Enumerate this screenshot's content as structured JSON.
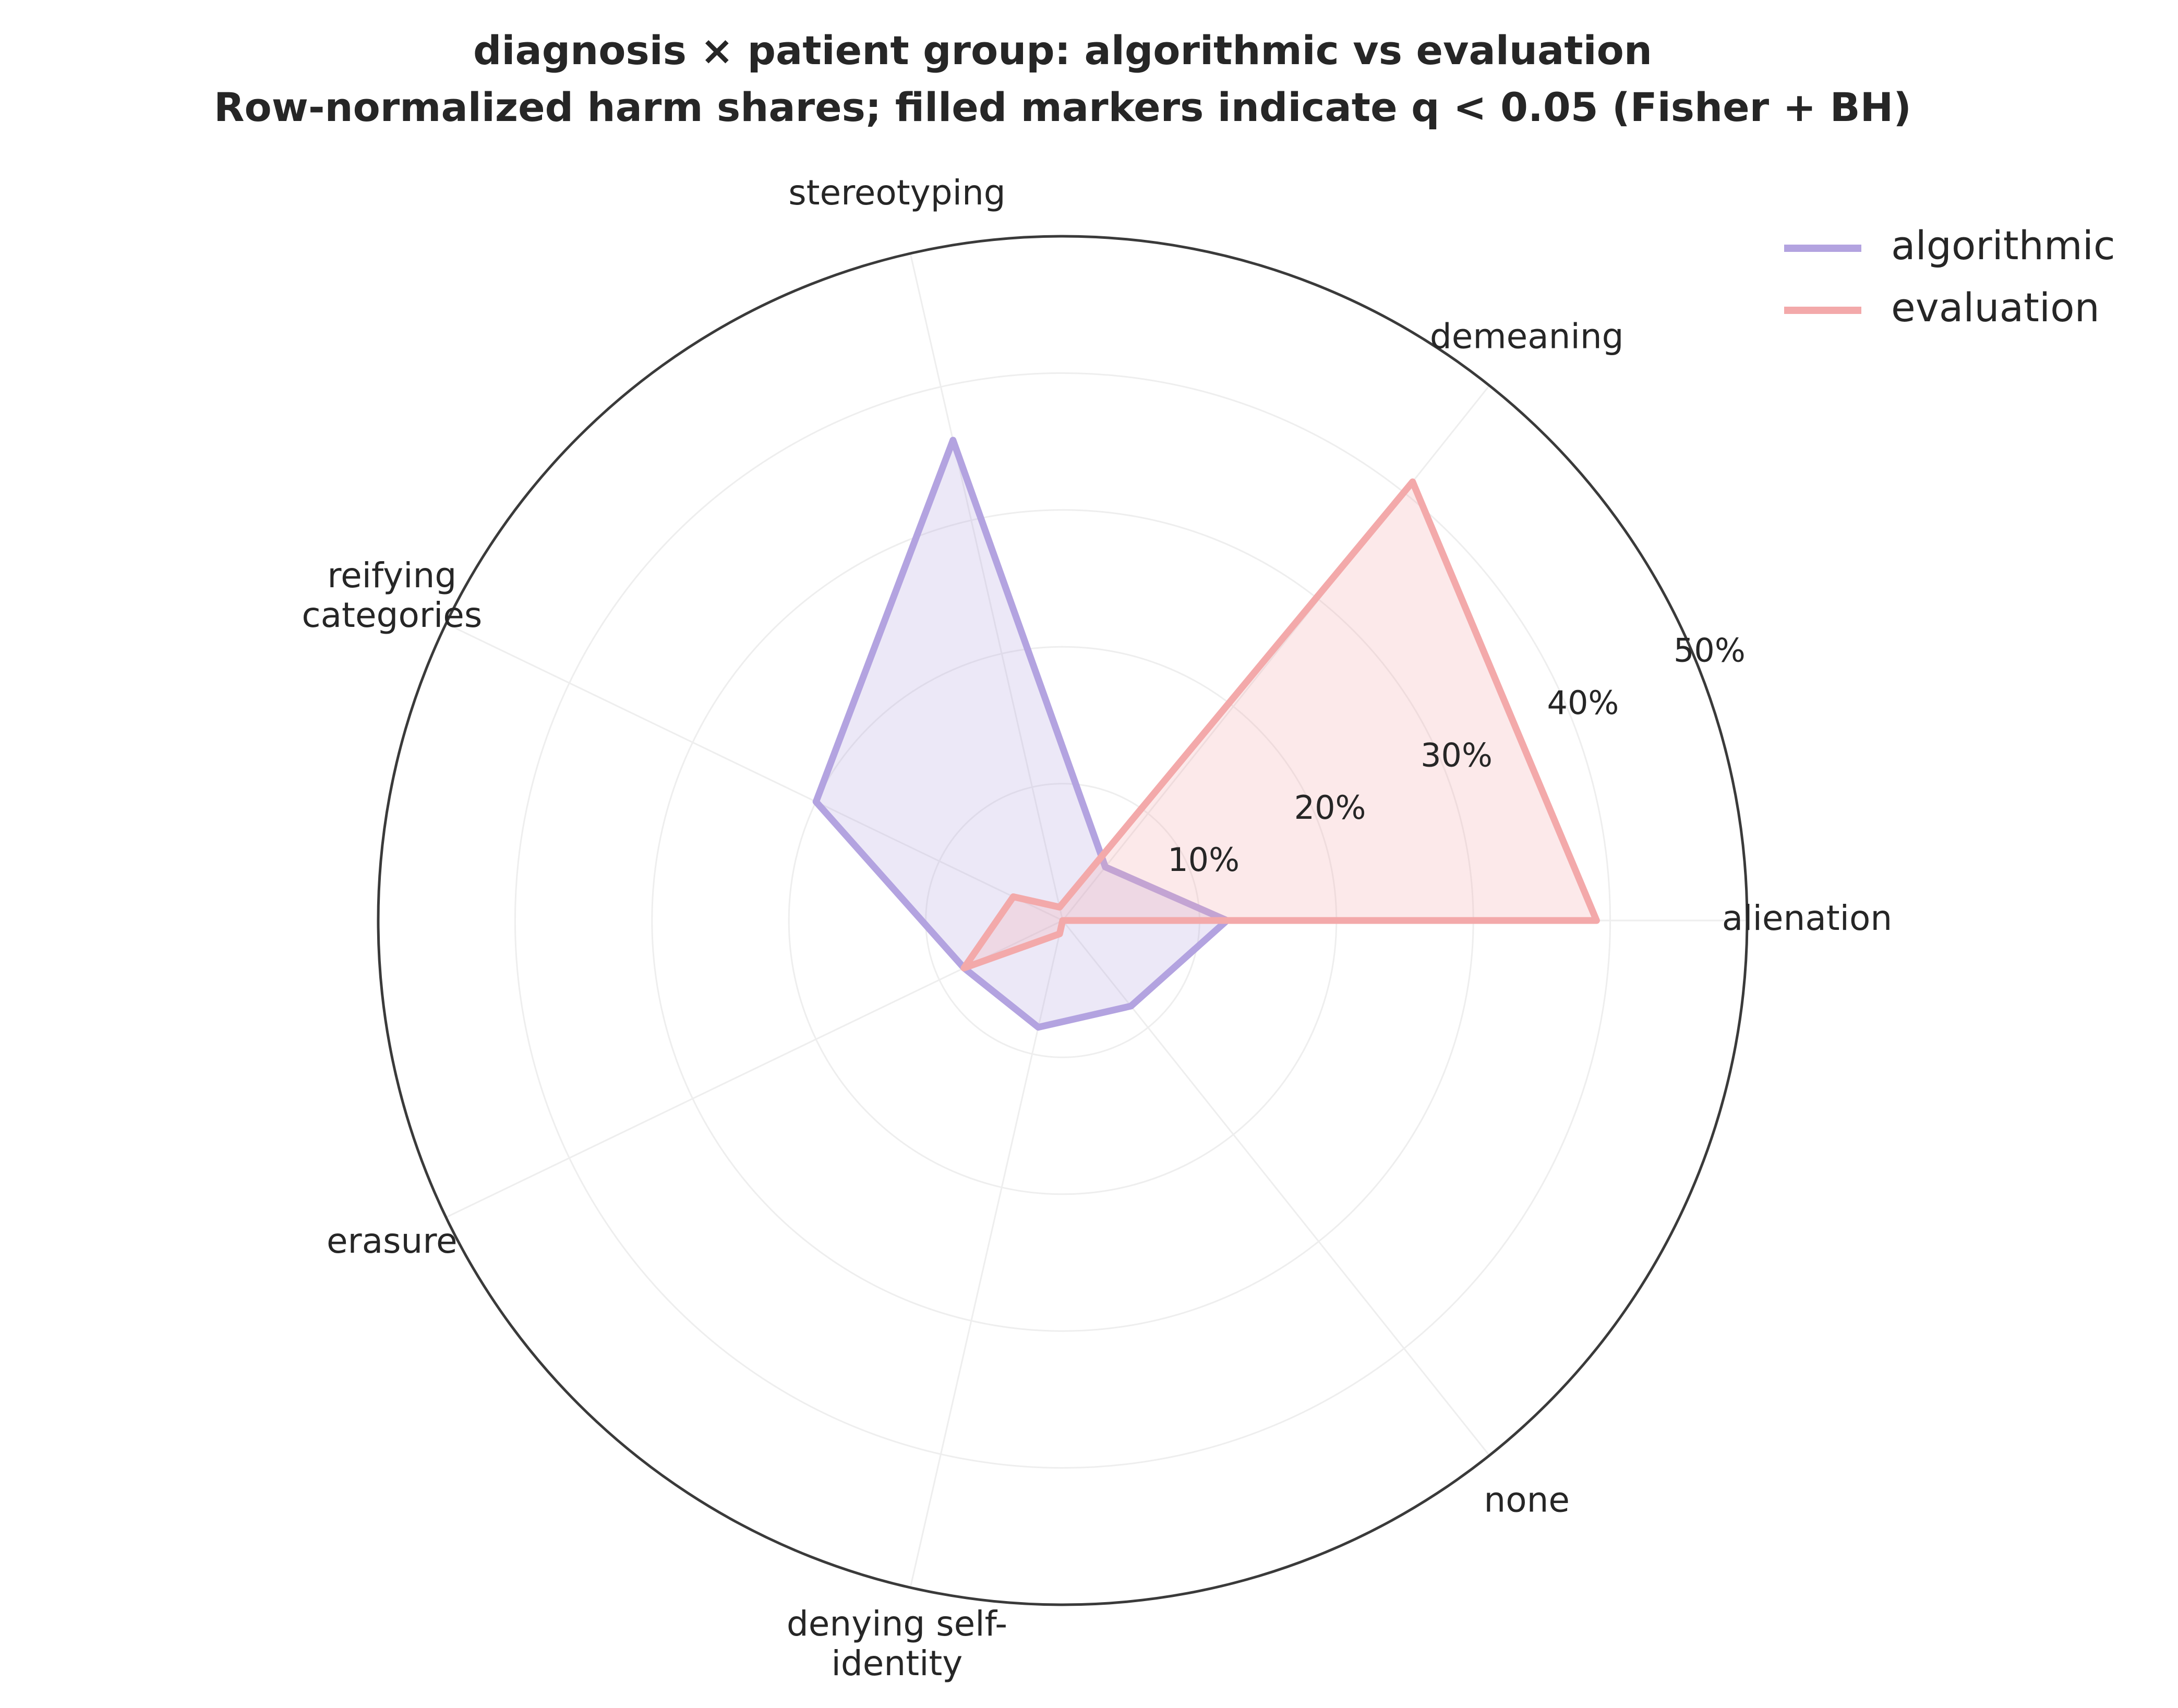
{
  "chart_data": {
    "type": "radar",
    "title": "diagnosis × patient group: algorithmic vs evaluation",
    "subtitle": "Row-normalized harm shares; filled markers indicate q < 0.05 (Fisher + BH)",
    "categories": [
      [
        "alienation"
      ],
      [
        "demeaning"
      ],
      [
        "stereotyping"
      ],
      [
        "reifying",
        "categories"
      ],
      [
        "erasure"
      ],
      [
        "denying self-",
        "identity"
      ],
      [
        "none"
      ]
    ],
    "r_ticks": [
      10,
      20,
      30,
      40,
      50
    ],
    "r_tick_labels": [
      "10%",
      "20%",
      "30%",
      "40%",
      "50%"
    ],
    "r_max": 50,
    "grid": true,
    "legend_position": "top-right",
    "series": [
      {
        "name": "algorithmic",
        "color": "#b3a3e0",
        "values": [
          12,
          5,
          36,
          20,
          8,
          8,
          8
        ]
      },
      {
        "name": "evaluation",
        "color": "#f3a9aa",
        "values": [
          39,
          41,
          1,
          4,
          8,
          1,
          0
        ]
      }
    ]
  }
}
